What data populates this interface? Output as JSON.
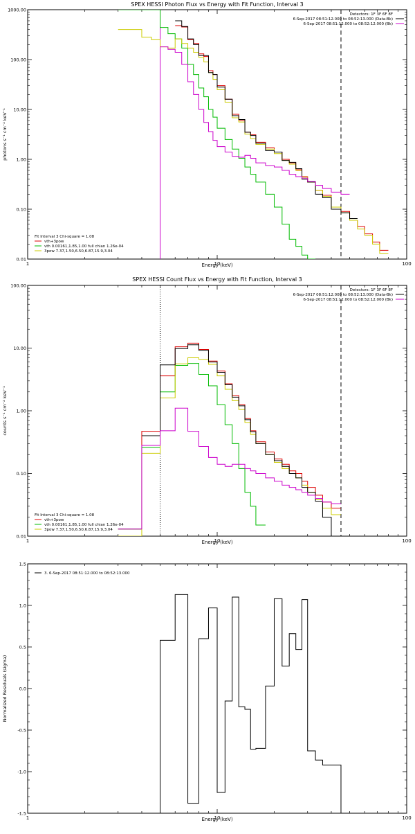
{
  "chart_data": [
    {
      "type": "line",
      "title": "SPEX HESSI Photon Flux vs Energy with Fit Function, Interval 3",
      "xlabel": "Energy (keV)",
      "ylabel": "photons s⁻¹ cm⁻² keV⁻¹",
      "xscale": "log",
      "yscale": "log",
      "xlim": [
        1,
        100
      ],
      "ylim": [
        0.01,
        1000
      ],
      "xticks": [
        "1",
        "10",
        "100"
      ],
      "yticks": [
        "0.01",
        "0.10",
        "1.00",
        "10.00",
        "100.00",
        "1000.00"
      ],
      "header": [
        "Detectors: 1F 3F 6F 8F",
        "6-Sep-2017 08:51:12.000 to 08:52:13.000 (Data-Bk)",
        "6-Sep-2017 08:51:12.000 to 08:52:12.000 (Bk)"
      ],
      "header_colors": [
        "#000000",
        "#000000",
        "#cc00cc"
      ],
      "legend": [
        "Fit Interval 3   Chi-square = 1.08",
        "vth+3pow",
        "vth 0.00161,1.85,1.00  full chian 1.26e-04",
        "3pow 7.37,1.50,6.50,6.87,15.9,3.04"
      ],
      "legend_colors": [
        "#000000",
        "#dd0000",
        "#00bb00",
        "#cccc00"
      ],
      "edges": [
        3.0,
        3.5,
        4.0,
        4.5,
        5.0,
        5.5,
        6.0,
        6.5,
        7.0,
        7.5,
        8.0,
        8.5,
        9.0,
        9.5,
        10.0,
        11.0,
        12.0,
        13.0,
        14.0,
        15.0,
        16.0,
        18.0,
        20.0,
        22.0,
        24.0,
        26.0,
        28.0,
        30.0,
        33.0,
        36.0,
        40.0,
        45.0,
        50.0,
        55.0,
        60.0,
        66.0,
        72.0,
        80.0
      ],
      "series": [
        {
          "name": "vth+3pow",
          "color": "#dd0000",
          "values": [
            null,
            null,
            null,
            null,
            null,
            null,
            480,
            450,
            250,
            210,
            130,
            115,
            60,
            50,
            30,
            16,
            8,
            6,
            3.5,
            3.1,
            2.2,
            1.7,
            1.4,
            1.0,
            0.85,
            0.62,
            0.45,
            0.35,
            0.24,
            0.19,
            0.11,
            0.09,
            0.06,
            0.045,
            0.032,
            0.022,
            0.015
          ]
        },
        {
          "name": "vth",
          "color": "#00bb00",
          "values": [
            1000,
            1000,
            1000,
            1000,
            440,
            330,
            260,
            170,
            80,
            50,
            27,
            18,
            10,
            7,
            4.2,
            2.5,
            1.6,
            1.05,
            0.7,
            0.5,
            0.35,
            0.2,
            0.11,
            0.05,
            0.025,
            0.018,
            0.012,
            0.01,
            null,
            null,
            null,
            null,
            null,
            null,
            null,
            null,
            null
          ]
        },
        {
          "name": "3pow",
          "color": "#cccc00",
          "values": [
            400,
            400,
            280,
            250,
            180,
            170,
            260,
            210,
            170,
            140,
            110,
            90,
            55,
            40,
            25,
            14,
            6.8,
            5.6,
            3.2,
            2.6,
            2.0,
            1.6,
            1.3,
            0.95,
            0.8,
            0.6,
            0.44,
            0.35,
            0.24,
            0.18,
            0.11,
            0.085,
            0.06,
            0.04,
            0.03,
            0.02,
            0.013
          ]
        },
        {
          "name": "Data-Bk",
          "color": "#000000",
          "values": [
            null,
            null,
            null,
            null,
            null,
            null,
            600,
            460,
            260,
            200,
            120,
            120,
            55,
            50,
            28,
            16,
            7.5,
            6.3,
            3.5,
            3.0,
            2.1,
            1.5,
            1.4,
            0.95,
            0.87,
            0.65,
            0.4,
            0.35,
            0.2,
            0.17,
            0.1,
            0.085,
            0.065,
            null,
            null,
            null,
            null
          ]
        },
        {
          "name": "Bk",
          "color": "#cc00cc",
          "values": [
            null,
            null,
            null,
            null,
            180,
            160,
            140,
            80,
            36,
            20,
            10,
            5.5,
            3.6,
            2.4,
            1.8,
            1.4,
            1.15,
            1.1,
            1.2,
            1.05,
            0.85,
            0.75,
            0.7,
            0.6,
            0.5,
            0.45,
            0.42,
            0.36,
            0.3,
            0.26,
            0.22,
            0.2,
            null,
            null,
            null,
            null,
            null
          ]
        }
      ]
    },
    {
      "type": "line",
      "title": "SPEX HESSI Count Flux vs Energy with Fit Function, Interval 3",
      "xlabel": "Energy (keV)",
      "ylabel": "counts s⁻¹ cm⁻² keV⁻¹",
      "xscale": "log",
      "yscale": "log",
      "xlim": [
        1,
        100
      ],
      "ylim": [
        0.01,
        100
      ],
      "xticks": [
        "1",
        "10",
        "100"
      ],
      "yticks": [
        "0.01",
        "0.10",
        "1.00",
        "10.00",
        "100.00"
      ],
      "header": [
        "Detectors: 1F 3F 6F 8F",
        "6-Sep-2017 08:51:12.000 to 08:52:13.000 (Data-Bk)",
        "6-Sep-2017 08:51:12.000 to 08:52:12.000 (Bk)"
      ],
      "header_colors": [
        "#000000",
        "#000000",
        "#cc00cc"
      ],
      "legend": [
        "Fit Interval 3   Chi-square = 1.08",
        "vth+3pow",
        "vth 0.00161,1.85,1.00  full chian 1.26e-04",
        "3pow 7.37,1.50,6.50,6.87,15.9,3.04"
      ],
      "legend_colors": [
        "#000000",
        "#dd0000",
        "#00bb00",
        "#cccc00"
      ],
      "edges": [
        3.0,
        4.0,
        5.0,
        6.0,
        7.0,
        8.0,
        9.0,
        10.0,
        11.0,
        12.0,
        13.0,
        14.0,
        15.0,
        16.0,
        18.0,
        20.0,
        22.0,
        24.0,
        26.0,
        28.0,
        30.0,
        33.0,
        36.0,
        40.0,
        45.0
      ],
      "series": [
        {
          "name": "vth+3pow",
          "color": "#dd0000",
          "values": [
            0.013,
            0.47,
            3.6,
            10.5,
            12.0,
            9.5,
            6.2,
            4.3,
            2.7,
            1.75,
            1.25,
            0.75,
            0.48,
            0.32,
            0.22,
            0.17,
            0.14,
            0.11,
            0.1,
            0.075,
            0.06,
            0.045,
            0.035,
            0.028
          ]
        },
        {
          "name": "vth",
          "color": "#00bb00",
          "values": [
            0.013,
            0.26,
            2.0,
            5.3,
            5.7,
            3.8,
            2.5,
            1.25,
            0.6,
            0.3,
            0.12,
            0.05,
            0.03,
            0.015,
            null,
            null,
            null,
            null,
            null,
            null,
            null,
            null,
            null,
            null
          ]
        },
        {
          "name": "3pow",
          "color": "#cccc00",
          "values": [
            0.009,
            0.21,
            1.6,
            5.6,
            7.0,
            6.6,
            5.5,
            3.6,
            2.2,
            1.45,
            1.05,
            0.65,
            0.42,
            0.3,
            0.2,
            0.15,
            0.12,
            0.1,
            0.085,
            0.065,
            0.05,
            0.038,
            0.028,
            0.022
          ]
        },
        {
          "name": "Data-Bk",
          "color": "#000000",
          "values": [
            null,
            0.4,
            5.4,
            9.8,
            11.3,
            9.2,
            6.0,
            4.1,
            2.6,
            1.65,
            1.2,
            0.72,
            0.46,
            0.3,
            0.2,
            0.16,
            0.13,
            0.1,
            0.085,
            0.06,
            0.05,
            0.036,
            0.02,
            0.01
          ]
        },
        {
          "name": "Bk",
          "color": "#cc00cc",
          "values": [
            0.013,
            0.28,
            0.48,
            1.1,
            0.47,
            0.27,
            0.18,
            0.14,
            0.13,
            0.14,
            0.14,
            0.12,
            0.11,
            0.1,
            0.085,
            0.075,
            0.065,
            0.06,
            0.055,
            0.05,
            0.045,
            0.04,
            0.035,
            0.033
          ]
        }
      ]
    },
    {
      "type": "line",
      "title": "",
      "xlabel": "Energy (keV)",
      "ylabel": "Normalized Residuals (sigma)",
      "xscale": "log",
      "yscale": "linear",
      "xlim": [
        1,
        100
      ],
      "ylim": [
        -1.5,
        1.5
      ],
      "xticks": [
        "1",
        "10",
        "100"
      ],
      "yticks": [
        "-1.5",
        "-1.0",
        "-0.5",
        "0.0",
        "0.5",
        "1.0",
        "1.5"
      ],
      "legend": [
        "3.  6-Sep-2017 08:51:12.000 to 08:52:13.000"
      ],
      "legend_colors": [
        "#000000"
      ],
      "edges": [
        5.0,
        6.0,
        7.0,
        8.0,
        9.0,
        10.0,
        11.0,
        12.0,
        13.0,
        14.0,
        15.0,
        16.0,
        18.0,
        20.0,
        22.0,
        24.0,
        26.0,
        28.0,
        30.0,
        33.0,
        36.0,
        40.0,
        45.0
      ],
      "series": [
        {
          "name": "3.  6-Sep-2017 08:51:12.000 to 08:52:13.000",
          "color": "#000000",
          "values": [
            0.58,
            1.13,
            -1.38,
            0.6,
            0.97,
            -1.25,
            -0.15,
            1.1,
            -0.22,
            -0.25,
            -0.73,
            -0.72,
            0.03,
            1.08,
            0.27,
            0.66,
            0.47,
            1.07,
            -0.75,
            -0.86,
            -0.92,
            -0.92
          ]
        }
      ]
    }
  ]
}
